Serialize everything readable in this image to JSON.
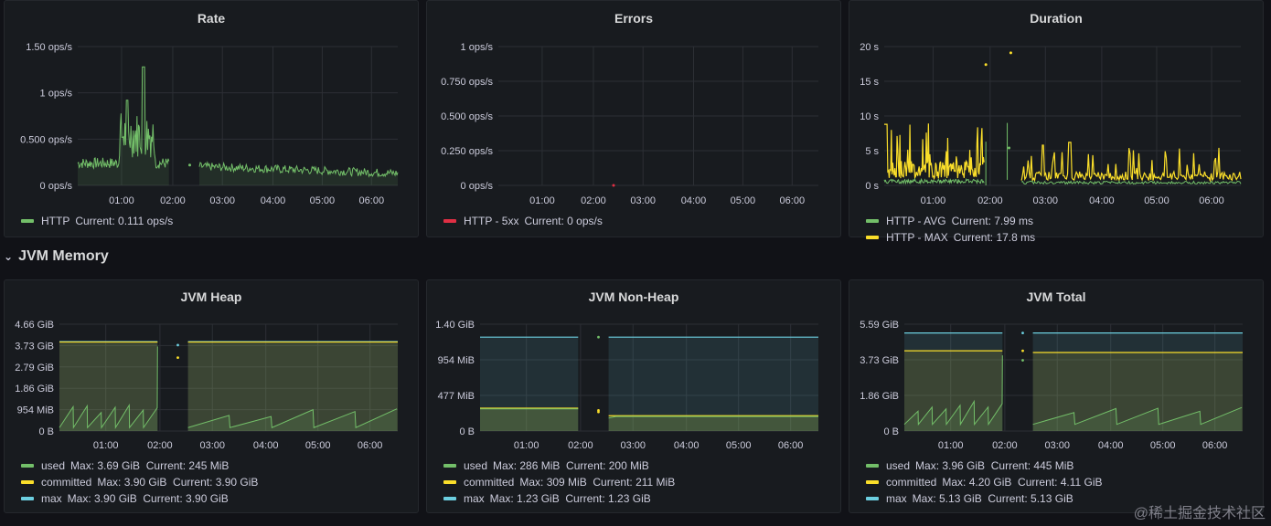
{
  "colors": {
    "green": "#73bf69",
    "red": "#e02f44",
    "yellow": "#fade2a",
    "blue": "#8ab8ff",
    "cyan": "#6ccfe0"
  },
  "row": {
    "title": "JVM Memory",
    "chevron_icon": "chevron-down-icon"
  },
  "watermark": "@稀土掘金技术社区",
  "time_ticks": [
    "01:00",
    "02:00",
    "03:00",
    "04:00",
    "05:00",
    "06:00"
  ],
  "panels": [
    {
      "id": "rate",
      "title": "Rate",
      "y_ticks": [
        "1.50 ops/s",
        "1 ops/s",
        "0.500 ops/s",
        "0 ops/s"
      ],
      "legend": [
        {
          "color": "green",
          "label": "HTTP",
          "stats": "Current: 0.111 ops/s"
        }
      ],
      "chart_data": {
        "type": "line",
        "ylim": [
          0,
          1.5
        ],
        "series": [
          {
            "name": "HTTP",
            "current": 0.111
          }
        ]
      }
    },
    {
      "id": "errors",
      "title": "Errors",
      "y_ticks": [
        "1 ops/s",
        "0.750 ops/s",
        "0.500 ops/s",
        "0.250 ops/s",
        "0 ops/s"
      ],
      "legend": [
        {
          "color": "red",
          "label": "HTTP - 5xx",
          "stats": "Current: 0 ops/s"
        }
      ],
      "chart_data": {
        "type": "line",
        "ylim": [
          0,
          1
        ],
        "series": [
          {
            "name": "HTTP - 5xx",
            "current": 0
          }
        ]
      }
    },
    {
      "id": "duration",
      "title": "Duration",
      "y_ticks": [
        "20 s",
        "15 s",
        "10 s",
        "5 s",
        "0 s"
      ],
      "legend": [
        {
          "color": "green",
          "label": "HTTP - AVG",
          "stats": "Current: 7.99 ms"
        },
        {
          "color": "yellow",
          "label": "HTTP - MAX",
          "stats": "Current: 17.8 ms"
        }
      ],
      "chart_data": {
        "type": "line",
        "ylim": [
          0,
          20
        ],
        "series": [
          {
            "name": "HTTP - AVG",
            "current_ms": 7.99
          },
          {
            "name": "HTTP - MAX",
            "current_ms": 17.8
          }
        ]
      }
    },
    {
      "id": "heap",
      "title": "JVM Heap",
      "y_ticks": [
        "4.66 GiB",
        "3.73 GiB",
        "2.79 GiB",
        "1.86 GiB",
        "954 MiB",
        "0 B"
      ],
      "legend": [
        {
          "color": "green",
          "label": "used",
          "stats": "Max: 3.69 GiB  Current: 245 MiB"
        },
        {
          "color": "yellow",
          "label": "committed",
          "stats": "Max: 3.90 GiB  Current: 3.90 GiB"
        },
        {
          "color": "cyan",
          "label": "max",
          "stats": "Max: 3.90 GiB  Current: 3.90 GiB"
        }
      ],
      "chart_data": {
        "type": "area",
        "ylim_gib": [
          0,
          4.66
        ],
        "series": [
          {
            "name": "used",
            "max_gib": 3.69
          },
          {
            "name": "committed",
            "max_gib": 3.9
          },
          {
            "name": "max",
            "max_gib": 3.9
          }
        ]
      }
    },
    {
      "id": "nonheap",
      "title": "JVM Non-Heap",
      "y_ticks": [
        "1.40 GiB",
        "954 MiB",
        "477 MiB",
        "0 B"
      ],
      "legend": [
        {
          "color": "green",
          "label": "used",
          "stats": "Max: 286 MiB  Current: 200 MiB"
        },
        {
          "color": "yellow",
          "label": "committed",
          "stats": "Max: 309 MiB  Current: 211 MiB"
        },
        {
          "color": "cyan",
          "label": "max",
          "stats": "Max: 1.23 GiB  Current: 1.23 GiB"
        }
      ],
      "chart_data": {
        "type": "area",
        "ylim_gib": [
          0,
          1.4
        ],
        "series": [
          {
            "name": "used",
            "max_mib": 286
          },
          {
            "name": "committed",
            "max_mib": 309
          },
          {
            "name": "max",
            "max_gib": 1.23
          }
        ]
      }
    },
    {
      "id": "total",
      "title": "JVM Total",
      "y_ticks": [
        "5.59 GiB",
        "3.73 GiB",
        "1.86 GiB",
        "0 B"
      ],
      "legend": [
        {
          "color": "green",
          "label": "used",
          "stats": "Max: 3.96 GiB  Current: 445 MiB"
        },
        {
          "color": "yellow",
          "label": "committed",
          "stats": "Max: 4.20 GiB  Current: 4.11 GiB"
        },
        {
          "color": "cyan",
          "label": "max",
          "stats": "Max: 5.13 GiB  Current: 5.13 GiB"
        }
      ],
      "chart_data": {
        "type": "area",
        "ylim_gib": [
          0,
          5.59
        ],
        "series": [
          {
            "name": "used",
            "max_gib": 3.96
          },
          {
            "name": "committed",
            "max_gib": 4.2
          },
          {
            "name": "max",
            "max_gib": 5.13
          }
        ]
      }
    }
  ]
}
